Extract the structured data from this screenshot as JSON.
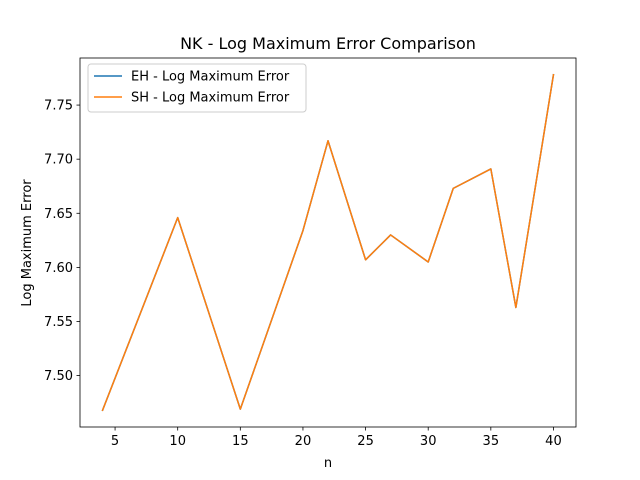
{
  "chart_data": {
    "type": "line",
    "title": "NK - Log Maximum Error Comparison",
    "xlabel": "n",
    "ylabel": "Log Maximum Error",
    "x": [
      4,
      10,
      15,
      20,
      22,
      25,
      27,
      30,
      32,
      35,
      37,
      40
    ],
    "series": [
      {
        "name": "EH - Log Maximum Error",
        "color": "#1f77b4",
        "values": [
          7.468,
          7.646,
          7.469,
          7.634,
          7.717,
          7.607,
          7.63,
          7.605,
          7.673,
          7.691,
          7.563,
          7.778
        ]
      },
      {
        "name": "SH - Log Maximum Error",
        "color": "#ff7f0e",
        "values": [
          7.468,
          7.646,
          7.469,
          7.634,
          7.717,
          7.607,
          7.63,
          7.605,
          7.673,
          7.691,
          7.563,
          7.778
        ]
      }
    ],
    "xlim": [
      2.2,
      41.8
    ],
    "ylim": [
      7.4525,
      7.7935
    ],
    "xticks": [
      5,
      10,
      15,
      20,
      25,
      30,
      35,
      40
    ],
    "yticks": [
      7.5,
      7.55,
      7.6,
      7.65,
      7.7,
      7.75
    ],
    "ytick_labels": [
      "7.50",
      "7.55",
      "7.60",
      "7.65",
      "7.70",
      "7.75"
    ],
    "legend_position": "upper-left",
    "grid": false
  }
}
